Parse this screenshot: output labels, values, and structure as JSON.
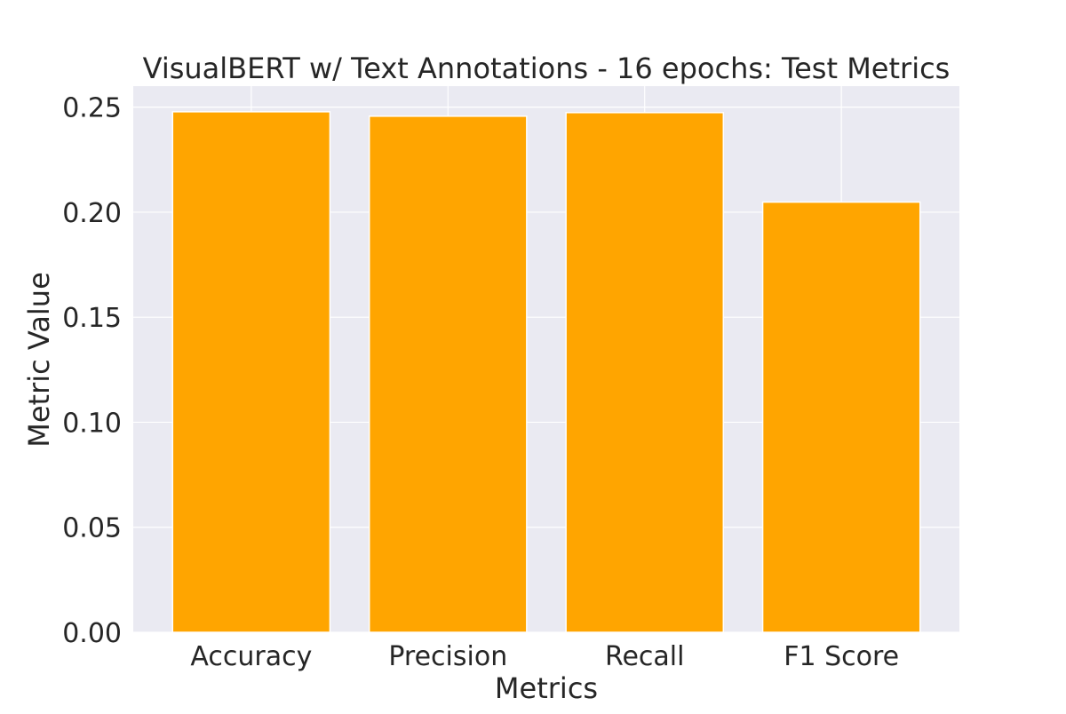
{
  "chart_data": {
    "type": "bar",
    "title": "VisualBERT w/ Text Annotations - 16 epochs: Test Metrics",
    "xlabel": "Metrics",
    "ylabel": "Metric Value",
    "categories": [
      "Accuracy",
      "Precision",
      "Recall",
      "F1 Score"
    ],
    "values": [
      0.2478,
      0.2457,
      0.2474,
      0.2048
    ],
    "ylim": [
      0,
      0.26
    ],
    "yticks": [
      "0.00",
      "0.05",
      "0.10",
      "0.15",
      "0.20",
      "0.25"
    ],
    "grid": true,
    "legend": "none",
    "colors": {
      "bar": "#FFA500",
      "plot_background": "#EAEAF2",
      "grid": "#FFFFFF",
      "text": "#262626"
    }
  }
}
